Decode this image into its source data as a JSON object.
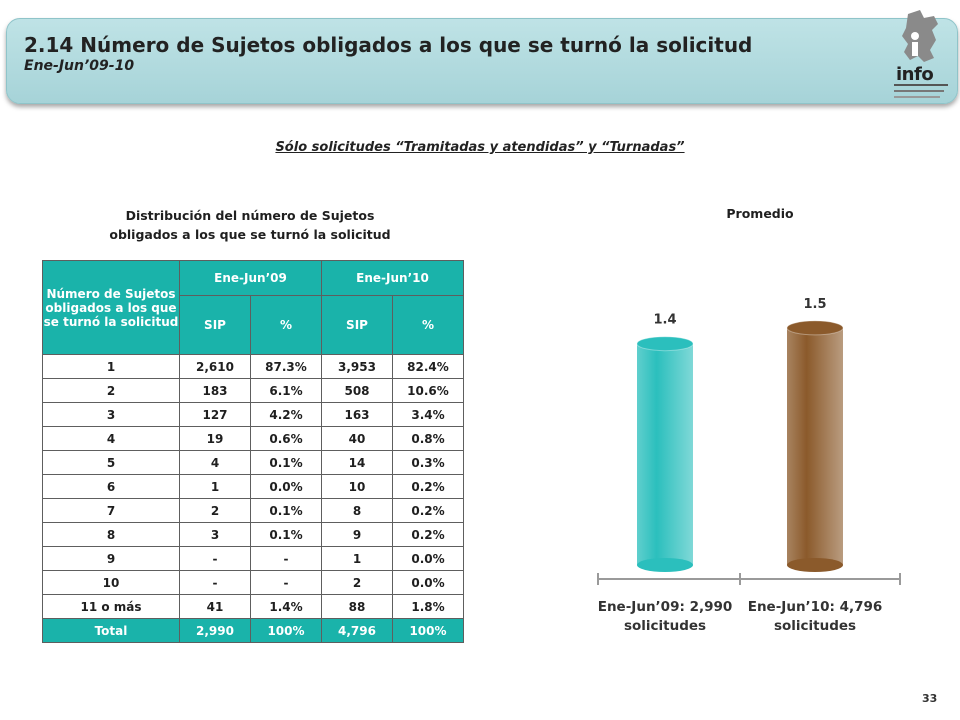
{
  "header": {
    "title": "2.14 Número de Sujetos obligados a los que se turnó la solicitud",
    "subtitle": "Ene-Jun’09-10",
    "logo_text": "info"
  },
  "note": "Sólo solicitudes “Tramitadas y atendidas” y “Turnadas”",
  "left_heading": "Distribución del número de Sujetos obligados a los que se turnó la solicitud",
  "right_heading": "Promedio",
  "table": {
    "row_header": "Número de Sujetos obligados a los que se turnó la solicitud",
    "period1": "Ene-Jun’09",
    "period2": "Ene-Jun’10",
    "sub_sip": "SIP",
    "sub_pct": "%",
    "rows": [
      [
        "1",
        "2,610",
        "87.3%",
        "3,953",
        "82.4%"
      ],
      [
        "2",
        "183",
        "6.1%",
        "508",
        "10.6%"
      ],
      [
        "3",
        "127",
        "4.2%",
        "163",
        "3.4%"
      ],
      [
        "4",
        "19",
        "0.6%",
        "40",
        "0.8%"
      ],
      [
        "5",
        "4",
        "0.1%",
        "14",
        "0.3%"
      ],
      [
        "6",
        "1",
        "0.0%",
        "10",
        "0.2%"
      ],
      [
        "7",
        "2",
        "0.1%",
        "8",
        "0.2%"
      ],
      [
        "8",
        "3",
        "0.1%",
        "9",
        "0.2%"
      ],
      [
        "9",
        "-",
        "-",
        "1",
        "0.0%"
      ],
      [
        "10",
        "-",
        "-",
        "2",
        "0.0%"
      ],
      [
        "11 o más",
        "41",
        "1.4%",
        "88",
        "1.8%"
      ]
    ],
    "total": [
      "Total",
      "2,990",
      "100%",
      "4,796",
      "100%"
    ]
  },
  "chart_data": {
    "type": "bar",
    "title": "Promedio",
    "categories": [
      "Ene-Jun’09: 2,990 solicitudes",
      "Ene-Jun’10: 4,796 solicitudes"
    ],
    "category_lines": [
      [
        "Ene-Jun’09: 2,990",
        "solicitudes"
      ],
      [
        "Ene-Jun’10: 4,796",
        "solicitudes"
      ]
    ],
    "values": [
      1.4,
      1.5
    ],
    "value_labels": [
      "1.4",
      "1.5"
    ],
    "colors": [
      "#2bbfbd",
      "#8b5a2b"
    ],
    "ylim": [
      0,
      1.55
    ],
    "grid": false,
    "legend": "none"
  },
  "page_number": "33"
}
